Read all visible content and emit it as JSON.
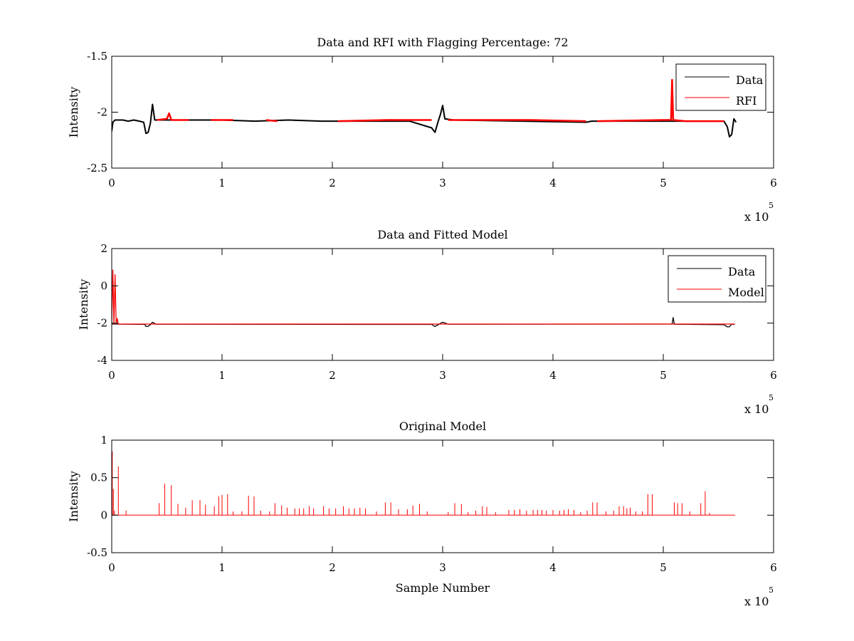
{
  "chart_data": [
    {
      "type": "line",
      "title": "Data and RFI with Flagging Percentage: 72",
      "xlabel": "",
      "ylabel": "Intensity",
      "xlim": [
        0,
        6
      ],
      "ylim": [
        -2.5,
        -1.5
      ],
      "x_multiplier": "x 10",
      "x_multiplier_exp": "5",
      "xticks": [
        0,
        1,
        2,
        3,
        4,
        5,
        6
      ],
      "xtick_labels": [
        "0",
        "1",
        "2",
        "3",
        "4",
        "5",
        "6"
      ],
      "yticks": [
        -2.5,
        -2,
        -1.5
      ],
      "ytick_labels": [
        "-2.5",
        "-2",
        "-1.5"
      ],
      "legend_position": "top-right",
      "colors": {
        "data": "#000000",
        "rfi": "#ff0000"
      },
      "series": [
        {
          "name": "Data",
          "color": "#000000",
          "x": [
            0.0,
            0.01,
            0.03,
            0.06,
            0.1,
            0.15,
            0.2,
            0.25,
            0.29,
            0.31,
            0.33,
            0.35,
            0.37,
            0.39,
            0.45,
            0.7,
            1.0,
            1.3,
            1.6,
            1.9,
            2.05,
            2.7,
            2.9,
            2.93,
            2.96,
            2.98,
            3.0,
            3.02,
            3.1,
            4.3,
            4.35,
            5.55,
            5.58,
            5.6,
            5.62,
            5.64,
            5.66
          ],
          "y": [
            -2.17,
            -2.09,
            -2.07,
            -2.07,
            -2.07,
            -2.08,
            -2.07,
            -2.08,
            -2.09,
            -2.19,
            -2.18,
            -2.1,
            -1.93,
            -2.07,
            -2.07,
            -2.07,
            -2.07,
            -2.08,
            -2.07,
            -2.08,
            -2.08,
            -2.08,
            -2.14,
            -2.18,
            -2.08,
            -2.02,
            -1.94,
            -2.06,
            -2.07,
            -2.09,
            -2.08,
            -2.08,
            -2.13,
            -2.22,
            -2.2,
            -2.06,
            -2.09
          ]
        },
        {
          "name": "RFI",
          "color": "#ff0000",
          "segments": [
            {
              "x": [
                0.41,
                0.5,
                0.52,
                0.54,
                0.7
              ],
              "y": [
                -2.07,
                -2.06,
                -2.01,
                -2.07,
                -2.07
              ]
            },
            {
              "x": [
                0.9,
                1.1
              ],
              "y": [
                -2.07,
                -2.07
              ]
            },
            {
              "x": [
                1.4,
                1.5
              ],
              "y": [
                -2.07,
                -2.08
              ]
            },
            {
              "x": [
                2.05,
                2.5,
                2.9
              ],
              "y": [
                -2.08,
                -2.07,
                -2.07
              ]
            },
            {
              "x": [
                3.05,
                3.4,
                3.8,
                4.3
              ],
              "y": [
                -2.07,
                -2.07,
                -2.07,
                -2.08
              ]
            },
            {
              "x": [
                4.4,
                5.0,
                5.07,
                5.08,
                5.09,
                5.2,
                5.55
              ],
              "y": [
                -2.08,
                -2.07,
                -2.07,
                -1.71,
                -2.07,
                -2.08,
                -2.08
              ]
            }
          ]
        }
      ]
    },
    {
      "type": "line",
      "title": "Data and Fitted Model",
      "xlabel": "",
      "ylabel": "Intensity",
      "xlim": [
        0,
        6
      ],
      "ylim": [
        -4,
        2
      ],
      "x_multiplier": "x 10",
      "x_multiplier_exp": "5",
      "xticks": [
        0,
        1,
        2,
        3,
        4,
        5,
        6
      ],
      "xtick_labels": [
        "0",
        "1",
        "2",
        "3",
        "4",
        "5",
        "6"
      ],
      "yticks": [
        -4,
        -2,
        0,
        2
      ],
      "ytick_labels": [
        "-4",
        "-2",
        "0",
        "2"
      ],
      "legend_position": "top-right",
      "series": [
        {
          "name": "Data",
          "color": "#000000",
          "x": [
            0.0,
            0.3,
            0.31,
            0.33,
            0.35,
            0.37,
            0.4,
            2.9,
            2.93,
            2.97,
            3.0,
            3.05,
            5.08,
            5.09,
            5.1,
            5.55,
            5.58,
            5.6,
            5.62,
            5.64
          ],
          "y": [
            -2.05,
            -2.07,
            -2.18,
            -2.17,
            -2.08,
            -1.95,
            -2.06,
            -2.07,
            -2.18,
            -2.05,
            -1.95,
            -2.06,
            -2.05,
            -1.7,
            -2.06,
            -2.08,
            -2.2,
            -2.2,
            -2.05,
            -2.08
          ]
        },
        {
          "name": "Model",
          "color": "#ff0000",
          "x": [
            0.0,
            0.01,
            0.02,
            0.03,
            0.04,
            0.05,
            0.06,
            0.07,
            5.65
          ],
          "y": [
            -2.05,
            0.85,
            -2.05,
            0.6,
            -2.05,
            -1.75,
            -2.05,
            -2.05,
            -2.05
          ]
        }
      ]
    },
    {
      "type": "line",
      "title": "Original Model",
      "xlabel": "Sample Number",
      "ylabel": "Intensity",
      "xlim": [
        0,
        6
      ],
      "ylim": [
        -0.5,
        1
      ],
      "x_multiplier": "x 10",
      "x_multiplier_exp": "5",
      "xticks": [
        0,
        1,
        2,
        3,
        4,
        5,
        6
      ],
      "xtick_labels": [
        "0",
        "1",
        "2",
        "3",
        "4",
        "5",
        "6"
      ],
      "yticks": [
        -0.5,
        0,
        0.5,
        1
      ],
      "ytick_labels": [
        "-0.5",
        "0",
        "0.5",
        "1"
      ],
      "series": [
        {
          "color": "#ff0000",
          "baseline": 0,
          "x_end": 5.65,
          "spikes_x": [
            0.005,
            0.015,
            0.025,
            0.06,
            0.13,
            0.43,
            0.48,
            0.54,
            0.6,
            0.67,
            0.73,
            0.8,
            0.85,
            0.93,
            0.97,
            1.0,
            1.05,
            1.1,
            1.18,
            1.24,
            1.29,
            1.35,
            1.43,
            1.48,
            1.54,
            1.59,
            1.66,
            1.7,
            1.74,
            1.79,
            1.83,
            1.92,
            1.97,
            2.03,
            2.1,
            2.15,
            2.2,
            2.25,
            2.3,
            2.4,
            2.48,
            2.53,
            2.6,
            2.68,
            2.73,
            2.79,
            2.86,
            3.05,
            3.11,
            3.17,
            3.23,
            3.3,
            3.36,
            3.4,
            3.48,
            3.6,
            3.65,
            3.7,
            3.76,
            3.82,
            3.86,
            3.9,
            3.94,
            4.0,
            4.06,
            4.1,
            4.14,
            4.19,
            4.25,
            4.31,
            4.36,
            4.4,
            4.48,
            4.55,
            4.6,
            4.64,
            4.67,
            4.7,
            4.75,
            4.81,
            4.86,
            4.9,
            5.1,
            5.13,
            5.17,
            5.24,
            5.34,
            5.38,
            5.42
          ],
          "spikes_y": [
            0.85,
            0.35,
            0.06,
            0.65,
            0.06,
            0.16,
            0.42,
            0.4,
            0.15,
            0.1,
            0.2,
            0.2,
            0.14,
            0.12,
            0.25,
            0.27,
            0.28,
            0.05,
            0.05,
            0.26,
            0.25,
            0.06,
            0.05,
            0.16,
            0.13,
            0.1,
            0.09,
            0.09,
            0.09,
            0.12,
            0.09,
            0.12,
            0.09,
            0.09,
            0.12,
            0.09,
            0.09,
            0.1,
            0.09,
            0.05,
            0.17,
            0.17,
            0.08,
            0.08,
            0.13,
            0.15,
            0.05,
            0.04,
            0.16,
            0.15,
            0.04,
            0.06,
            0.12,
            0.11,
            0.04,
            0.07,
            0.07,
            0.08,
            0.06,
            0.07,
            0.07,
            0.07,
            0.06,
            0.07,
            0.06,
            0.07,
            0.08,
            0.07,
            0.04,
            0.06,
            0.17,
            0.17,
            0.05,
            0.06,
            0.12,
            0.12,
            0.09,
            0.1,
            0.05,
            0.05,
            0.28,
            0.28,
            0.17,
            0.16,
            0.16,
            0.05,
            0.16,
            0.32,
            0.03
          ]
        }
      ]
    }
  ]
}
